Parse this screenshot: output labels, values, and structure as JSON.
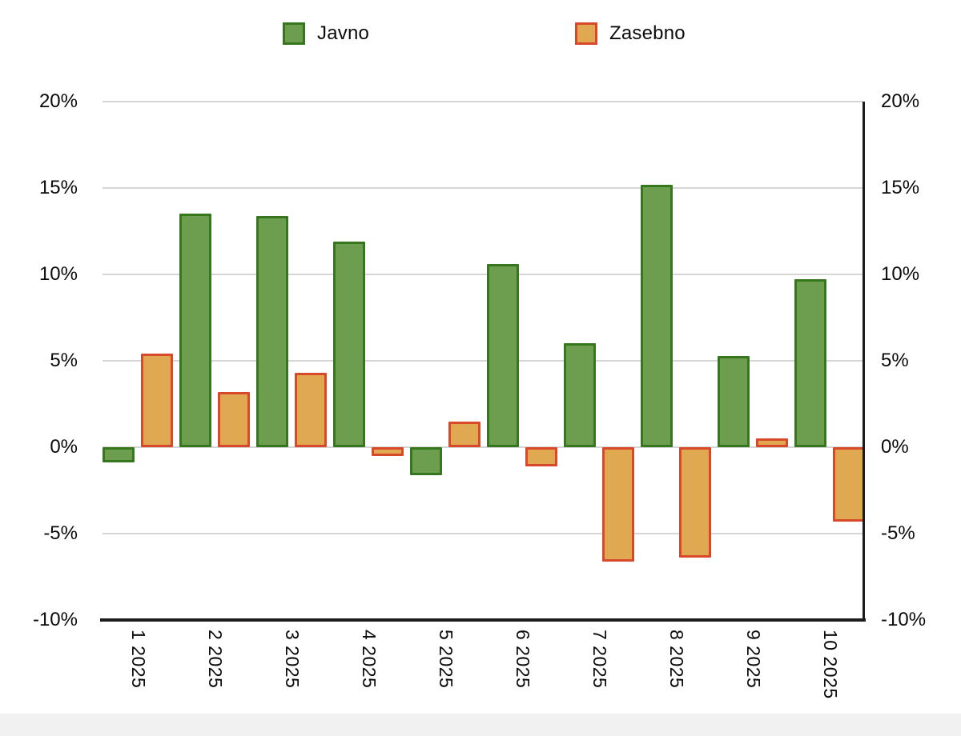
{
  "legend": {
    "items": [
      {
        "label": "Javno"
      },
      {
        "label": "Zasebno"
      }
    ]
  },
  "chart_data": {
    "type": "bar",
    "title": "",
    "categories": [
      "1 2025",
      "2 2025",
      "3 2025",
      "4 2025",
      "5 2025",
      "6 2025",
      "7 2025",
      "8 2025",
      "9 2025",
      "10 2025"
    ],
    "series": [
      {
        "name": "Javno",
        "fill_color": "#6D9E4F",
        "border_color": "#36771E",
        "values": [
          -0.9,
          13.5,
          13.4,
          11.9,
          -1.6,
          10.6,
          6.0,
          15.2,
          5.3,
          9.7
        ]
      },
      {
        "name": "Zasebno",
        "fill_color": "#DFA851",
        "border_color": "#D7492A",
        "values": [
          5.4,
          3.2,
          4.3,
          -0.5,
          1.5,
          -1.1,
          -6.6,
          -6.4,
          0.5,
          -4.3
        ]
      }
    ],
    "ylim": [
      -10,
      20
    ],
    "yticks": [
      20,
      15,
      10,
      5,
      0,
      -5,
      -10
    ],
    "ytick_labels": [
      "20%",
      "15%",
      "10%",
      "5%",
      "0%",
      "-5%",
      "-10%"
    ],
    "y_axis_sides": "both",
    "grid": true,
    "legend_position": "top",
    "unit": "%"
  },
  "colors": {
    "gridline": "#D6D6D6",
    "axis": "#1C1C1C",
    "background": "#FFFFFF",
    "bottom_strip": "#F1F1F2"
  }
}
